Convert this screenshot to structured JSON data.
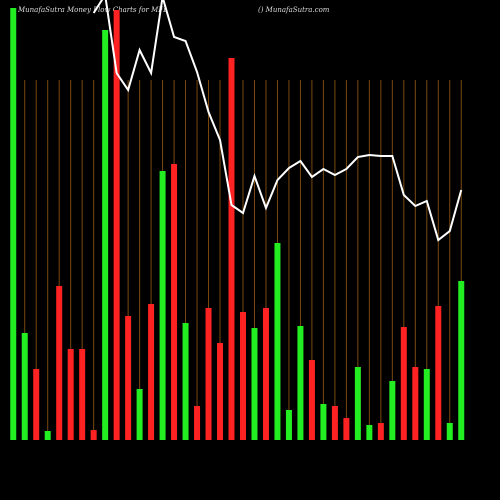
{
  "chart_data": {
    "type": "bar",
    "title": "MunafaSutra  Money Flow  Charts for  MFL",
    "subtitle": "() MunafaSutra.com",
    "categories": [
      null,
      null,
      null,
      null,
      null,
      null,
      null,
      null,
      null,
      null,
      null,
      null,
      null,
      null,
      null,
      null,
      null,
      null,
      null,
      null,
      null,
      null,
      null,
      null,
      null,
      null,
      null,
      null,
      null,
      null,
      null,
      null,
      null,
      null,
      null,
      null,
      null,
      null,
      null,
      null
    ],
    "values": [
      432,
      107,
      71,
      9,
      154,
      91,
      91,
      10,
      410,
      430,
      124,
      51,
      136,
      269,
      276,
      117,
      34,
      132,
      97,
      382,
      128,
      112,
      132,
      197,
      30,
      114,
      80,
      36,
      34,
      22,
      73,
      15,
      17,
      59,
      113,
      73,
      71,
      134,
      17,
      159
    ],
    "colors": [
      "#22ee22",
      "#22ee22",
      "#ff2222",
      "#22ee22",
      "#ff2222",
      "#ff2222",
      "#ff2222",
      "#ff2222",
      "#22ee22",
      "#ff2222",
      "#ff2222",
      "#22ee22",
      "#ff2222",
      "#22ee22",
      "#ff2222",
      "#22ee22",
      "#ff2222",
      "#ff2222",
      "#ff2222",
      "#ff2222",
      "#ff2222",
      "#22ee22",
      "#ff2222",
      "#22ee22",
      "#22ee22",
      "#22ee22",
      "#ff2222",
      "#22ee22",
      "#ff2222",
      "#ff2222",
      "#22ee22",
      "#22ee22",
      "#ff2222",
      "#22ee22",
      "#ff2222",
      "#ff2222",
      "#22ee22",
      "#ff2222",
      "#22ee22",
      "#22ee22"
    ],
    "line": {
      "color": "#ffffff",
      "values": [
        null,
        null,
        null,
        null,
        null,
        null,
        null,
        427,
        445,
        367,
        350,
        390,
        367,
        443,
        403,
        399,
        368,
        328,
        300,
        235,
        227,
        264,
        232,
        260,
        272,
        279,
        263,
        271,
        265,
        271,
        283,
        285,
        284,
        284,
        245,
        234,
        239,
        200,
        209,
        250
      ]
    },
    "ylim": [
      0,
      440
    ]
  }
}
